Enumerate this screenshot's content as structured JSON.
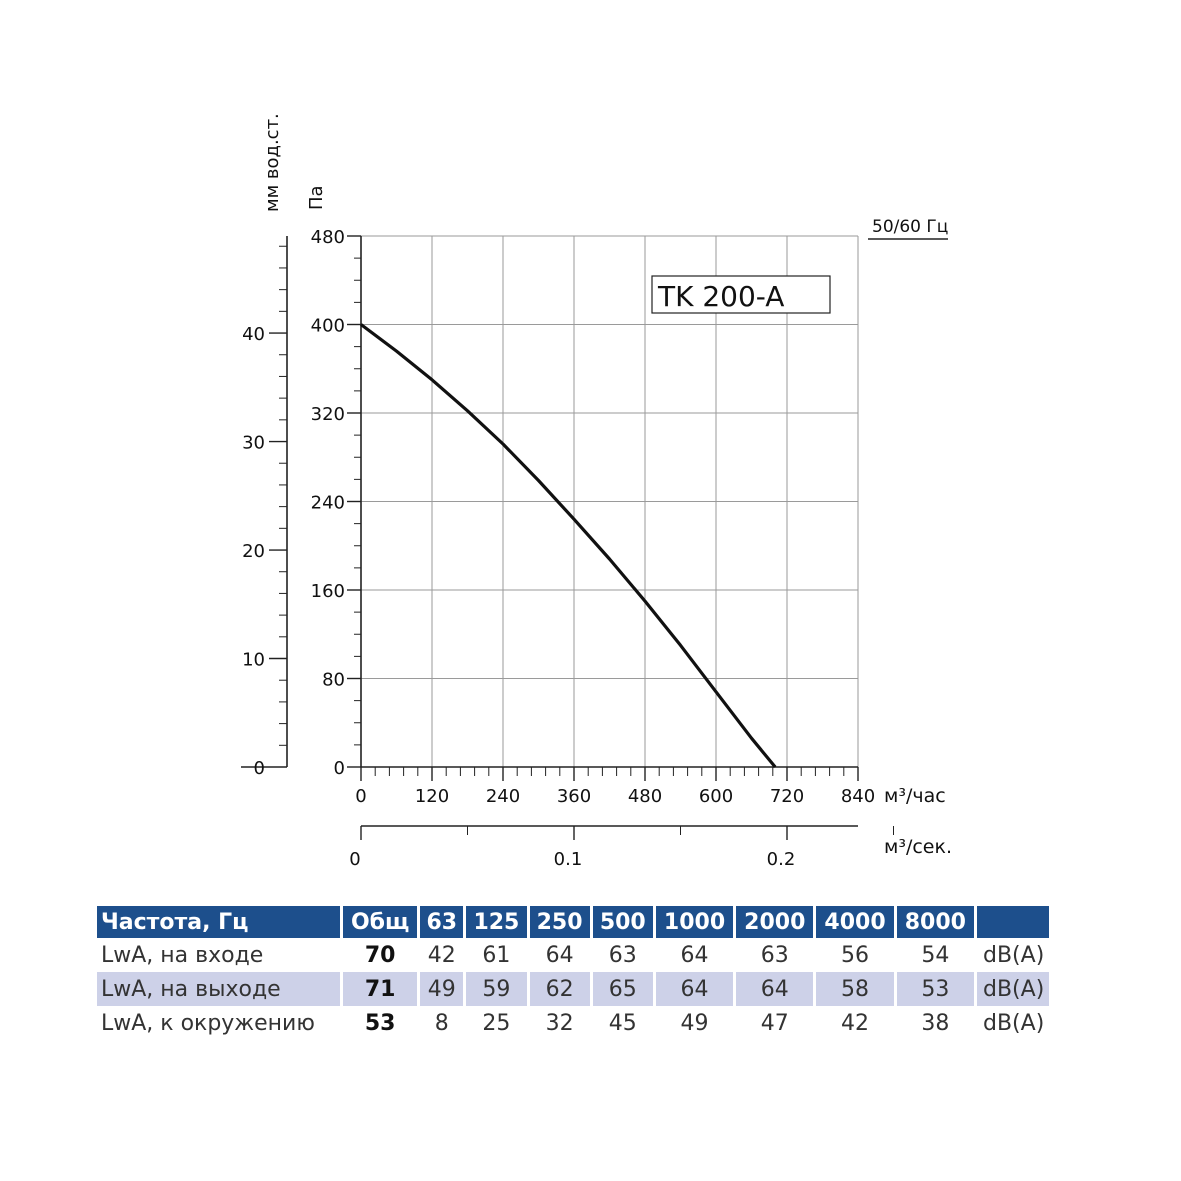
{
  "chart_data": {
    "type": "line",
    "model_label": "TK 200-A",
    "frequency_label": "50/60 Гц",
    "y_left_unit": "мм вод.ст.",
    "y_left_ticks": [
      "0",
      "10",
      "20",
      "30",
      "40"
    ],
    "y_unit": "Па",
    "y_ticks": [
      "0",
      "80",
      "160",
      "240",
      "320",
      "400",
      "480"
    ],
    "ylim": [
      0,
      480
    ],
    "x_unit": "м³/час",
    "x_ticks": [
      "0",
      "120",
      "240",
      "360",
      "480",
      "600",
      "720",
      "840"
    ],
    "xlim": [
      0,
      840
    ],
    "x2_unit": "м³/сек.",
    "x2_ticks": [
      "0",
      "0.1",
      "0.2"
    ],
    "grid": true,
    "series": [
      {
        "x": [
          0,
          60,
          120,
          180,
          240,
          300,
          360,
          420,
          480,
          540,
          600,
          660,
          700,
          732
        ],
        "y": [
          400,
          376,
          350,
          322,
          292,
          259,
          224,
          188,
          150,
          110,
          68,
          26,
          0,
          0
        ]
      }
    ]
  },
  "table": {
    "header": [
      "Частота, Гц",
      "Общ",
      "63",
      "125",
      "250",
      "500",
      "1000",
      "2000",
      "4000",
      "8000",
      ""
    ],
    "rows": [
      {
        "label": "LwA, на входе",
        "total": "70",
        "values": [
          "42",
          "61",
          "64",
          "63",
          "64",
          "63",
          "56",
          "54"
        ],
        "unit": "dB(A)"
      },
      {
        "label": "LwA, на выходе",
        "total": "71",
        "values": [
          "49",
          "59",
          "62",
          "65",
          "64",
          "64",
          "58",
          "53"
        ],
        "unit": "dB(A)"
      },
      {
        "label": "LwA, к окружению",
        "total": "53",
        "values": [
          "8",
          "25",
          "32",
          "45",
          "49",
          "47",
          "42",
          "38"
        ],
        "unit": "dB(A)"
      }
    ]
  }
}
